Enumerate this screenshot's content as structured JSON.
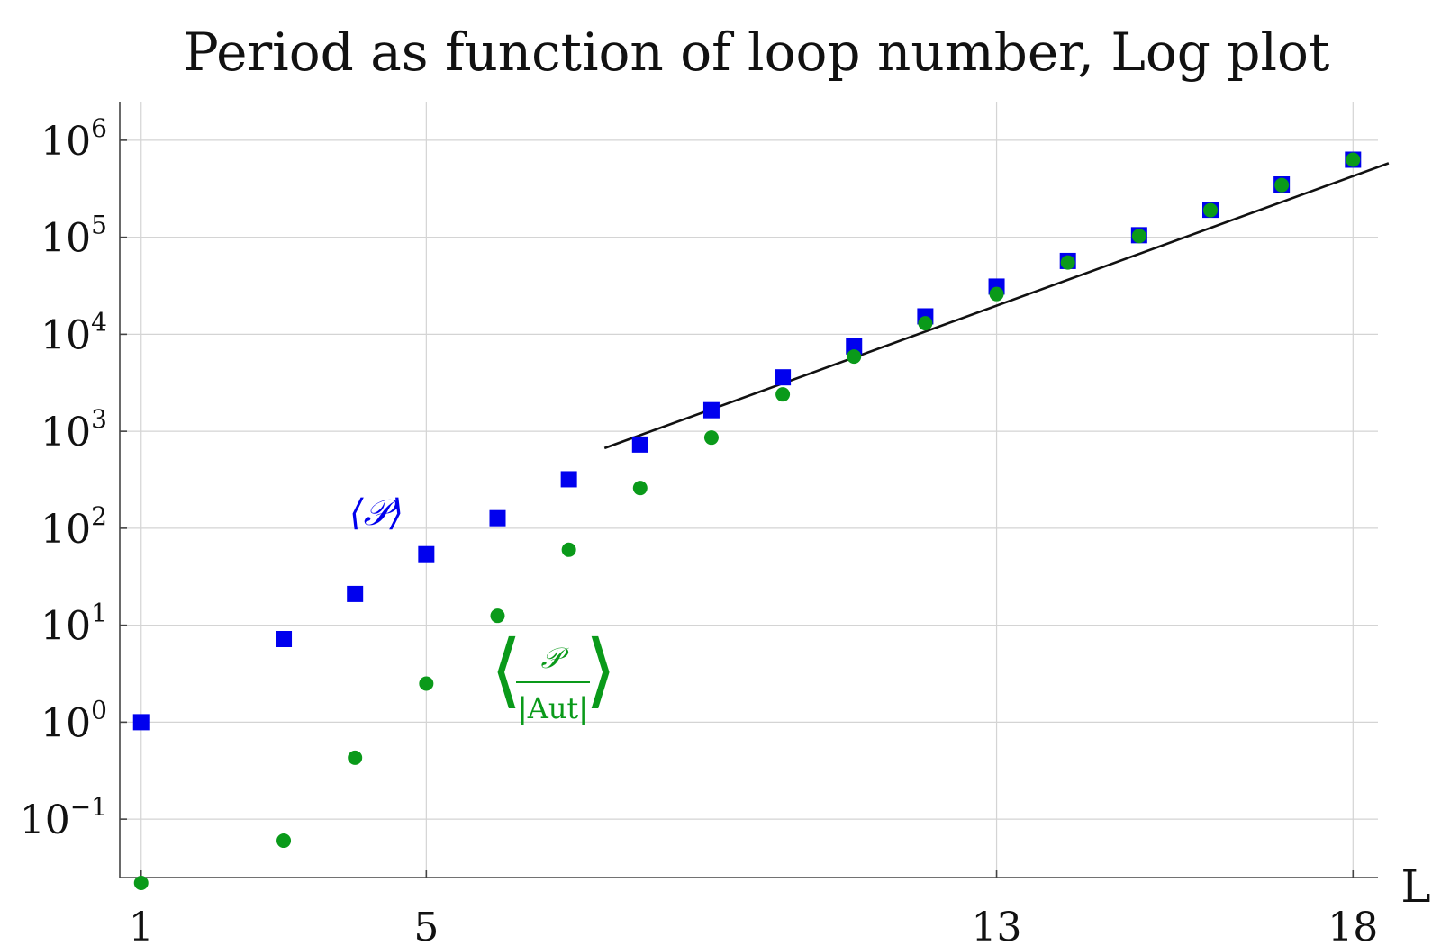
{
  "chart_data": {
    "type": "scatter",
    "title": "Period as function of loop number, Log plot",
    "xlabel": "L",
    "ylabel": "",
    "yscale": "log",
    "xlim": [
      0.7,
      18.35
    ],
    "ylim": [
      0.025,
      2500000
    ],
    "grid": true,
    "legend": "none",
    "x_ticks": [
      1,
      5,
      13,
      18
    ],
    "y_ticks": [
      {
        "value": 0.1,
        "base": "10",
        "exp": "−1"
      },
      {
        "value": 1,
        "base": "10",
        "exp": "0"
      },
      {
        "value": 10,
        "base": "10",
        "exp": "1"
      },
      {
        "value": 100,
        "base": "10",
        "exp": "2"
      },
      {
        "value": 1000,
        "base": "10",
        "exp": "3"
      },
      {
        "value": 10000,
        "base": "10",
        "exp": "4"
      },
      {
        "value": 100000,
        "base": "10",
        "exp": "5"
      },
      {
        "value": 1000000,
        "base": "10",
        "exp": "6"
      }
    ],
    "series": [
      {
        "marker": "square",
        "color": "#0000ee",
        "x": [
          1,
          3,
          4,
          5,
          6,
          7,
          8,
          9,
          10,
          11,
          12,
          13,
          14,
          15,
          16,
          17,
          18
        ],
        "y": [
          1,
          7.2,
          21,
          54,
          127,
          320,
          730,
          1650,
          3600,
          7500,
          15300,
          31000,
          57000,
          105000,
          192000,
          350000,
          630000
        ]
      },
      {
        "marker": "circle",
        "color": "#0a9a1a",
        "x": [
          1,
          3,
          4,
          5,
          6,
          7,
          8,
          9,
          10,
          11,
          12,
          13,
          14,
          15,
          16,
          17,
          18
        ],
        "y": [
          0.022,
          0.06,
          0.43,
          2.5,
          12.5,
          60,
          260,
          860,
          2400,
          5900,
          13000,
          26000,
          55000,
          103000,
          190000,
          345000,
          630000
        ]
      },
      {
        "type": "line",
        "color": "#111111",
        "x": [
          7.5,
          18.5
        ],
        "y": [
          670,
          580000
        ]
      }
    ],
    "annotations": {
      "blue_label": "⟨𝒫⟩",
      "green_numerator": "𝒫",
      "green_denominator": "|Aut|",
      "green_left": "⟨",
      "green_right": "⟩"
    }
  }
}
